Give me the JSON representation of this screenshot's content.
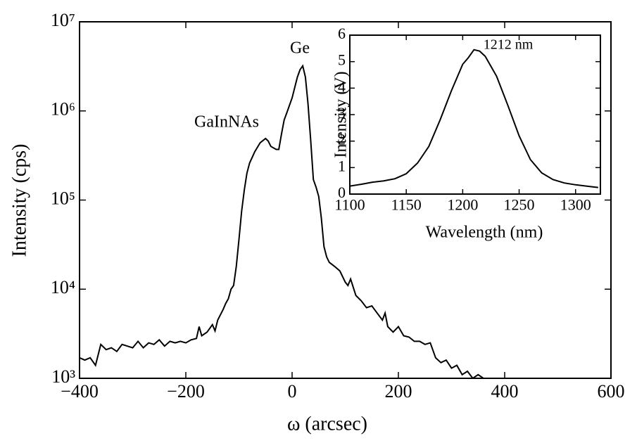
{
  "chart_data": [
    {
      "type": "line",
      "x_label": "ω (arcsec)",
      "y_label": "Intensity (cps)",
      "log_y": true,
      "color": "#000000",
      "xlim": [
        -400,
        600
      ],
      "xticks": [
        {
          "value": -400,
          "label": "−400"
        },
        {
          "value": -200,
          "label": "−200"
        },
        0,
        200,
        400,
        600
      ],
      "ylim": [
        1000,
        10000000
      ],
      "yticks": [
        {
          "value": 1000,
          "label": "10³"
        },
        {
          "value": 10000,
          "label": "10⁴"
        },
        {
          "value": 100000,
          "label": "10⁵"
        },
        {
          "value": 1000000,
          "label": "10⁶"
        },
        {
          "value": 10000000,
          "label": "10⁷"
        }
      ],
      "annotations": [
        "GaInNAs",
        "Ge"
      ],
      "x": [
        -400,
        -390,
        -380,
        -370,
        -360,
        -350,
        -340,
        -330,
        -320,
        -310,
        -300,
        -290,
        -280,
        -270,
        -260,
        -250,
        -240,
        -230,
        -220,
        -210,
        -200,
        -190,
        -180,
        -175,
        -170,
        -160,
        -150,
        -145,
        -140,
        -130,
        -125,
        -120,
        -115,
        -110,
        -105,
        -100,
        -95,
        -90,
        -85,
        -80,
        -70,
        -60,
        -50,
        -45,
        -40,
        -30,
        -25,
        -20,
        -15,
        -10,
        0,
        10,
        15,
        20,
        25,
        30,
        35,
        40,
        45,
        50,
        55,
        60,
        65,
        70,
        80,
        90,
        100,
        105,
        110,
        120,
        130,
        140,
        150,
        160,
        170,
        175,
        180,
        190,
        200,
        210,
        220,
        230,
        240,
        250,
        260,
        270,
        280,
        290,
        300,
        310,
        320,
        330,
        340,
        350,
        360
      ],
      "values": [
        1700,
        1600,
        1700,
        1400,
        2400,
        2100,
        2200,
        2000,
        2400,
        2300,
        2200,
        2600,
        2200,
        2500,
        2400,
        2700,
        2300,
        2600,
        2500,
        2600,
        2500,
        2700,
        2800,
        3800,
        3000,
        3300,
        4000,
        3400,
        4500,
        5900,
        6900,
        7800,
        10000,
        11000,
        18000,
        36000,
        75000,
        130000,
        200000,
        260000,
        350000,
        440000,
        490000,
        460000,
        400000,
        370000,
        370000,
        550000,
        790000,
        950000,
        1400000,
        2400000,
        2900000,
        3200000,
        2400000,
        1200000,
        470000,
        170000,
        140000,
        110000,
        63000,
        30000,
        23000,
        20000,
        18000,
        16000,
        12000,
        11000,
        13000,
        8500,
        7400,
        6200,
        6500,
        5400,
        4500,
        5400,
        3800,
        3300,
        3800,
        3000,
        2900,
        2600,
        2600,
        2400,
        2500,
        1700,
        1500,
        1600,
        1300,
        1400,
        1100,
        1200,
        1000,
        1100,
        1000
      ]
    },
    {
      "type": "line",
      "x_label": "Wavelength (nm)",
      "y_label": "Intensity (V)",
      "log_y": false,
      "color": "#000000",
      "xlim": [
        1100,
        1322
      ],
      "xticks": [
        1100,
        1150,
        1200,
        1250,
        1300
      ],
      "ylim": [
        0,
        6
      ],
      "yticks": [
        0,
        1,
        2,
        3,
        4,
        5,
        6
      ],
      "annotations": [
        "1212 nm"
      ],
      "x": [
        1100,
        1110,
        1120,
        1130,
        1140,
        1150,
        1160,
        1170,
        1180,
        1190,
        1200,
        1205,
        1210,
        1215,
        1220,
        1230,
        1240,
        1250,
        1260,
        1270,
        1280,
        1290,
        1300,
        1310,
        1320
      ],
      "values": [
        0.3,
        0.37,
        0.45,
        0.5,
        0.58,
        0.77,
        1.17,
        1.8,
        2.8,
        3.9,
        4.9,
        5.15,
        5.45,
        5.4,
        5.2,
        4.45,
        3.35,
        2.2,
        1.3,
        0.8,
        0.55,
        0.42,
        0.35,
        0.3,
        0.25
      ]
    }
  ]
}
